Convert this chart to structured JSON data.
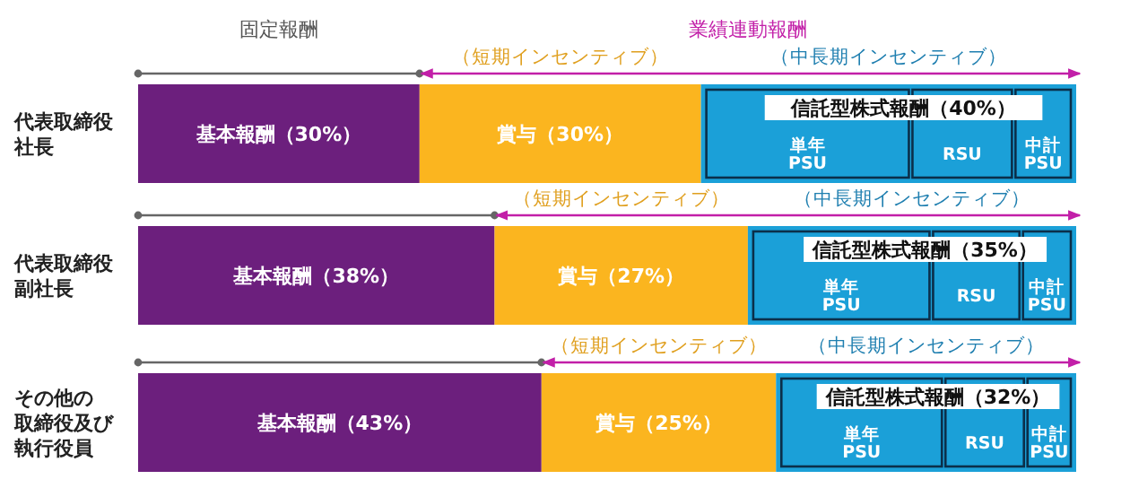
{
  "chart_data": {
    "type": "bar",
    "orientation": "horizontal",
    "stacked": true,
    "categories": [
      "代表取締役社長",
      "代表取締役副社長",
      "その他の取締役及び執行役員"
    ],
    "series": [
      {
        "color": "#6c1f7d",
        "values": [
          30,
          38,
          43
        ],
        "value_labels": [
          "基本報酬（30%）",
          "基本報酬（38%）",
          "基本報酬（43%）"
        ]
      },
      {
        "color": "#fbb51f",
        "values": [
          30,
          27,
          25
        ],
        "value_labels": [
          "賞与（30%）",
          "賞与（27%）",
          "賞与（25%）"
        ]
      },
      {
        "color": "#1ba0d8",
        "values": [
          40,
          35,
          32
        ],
        "value_labels": [
          "信託型株式報酬（40%）",
          "信託型株式報酬（35%）",
          "信託型株式報酬（32%）"
        ]
      }
    ],
    "annotations": [
      "固定報酬",
      "業績連動報酬",
      "（短期インセンティブ）",
      "（中長期インセンティブ）",
      "単年PSU",
      "RSU",
      "中計PSU",
      "（短期インセンティブ）",
      "（中長期インセンティブ）",
      "単年PSU",
      "RSU",
      "中計PSU",
      "（短期インセンティブ）",
      "（中長期インセンティブ）",
      "単年PSU",
      "RSU",
      "中計PSU"
    ]
  }
}
